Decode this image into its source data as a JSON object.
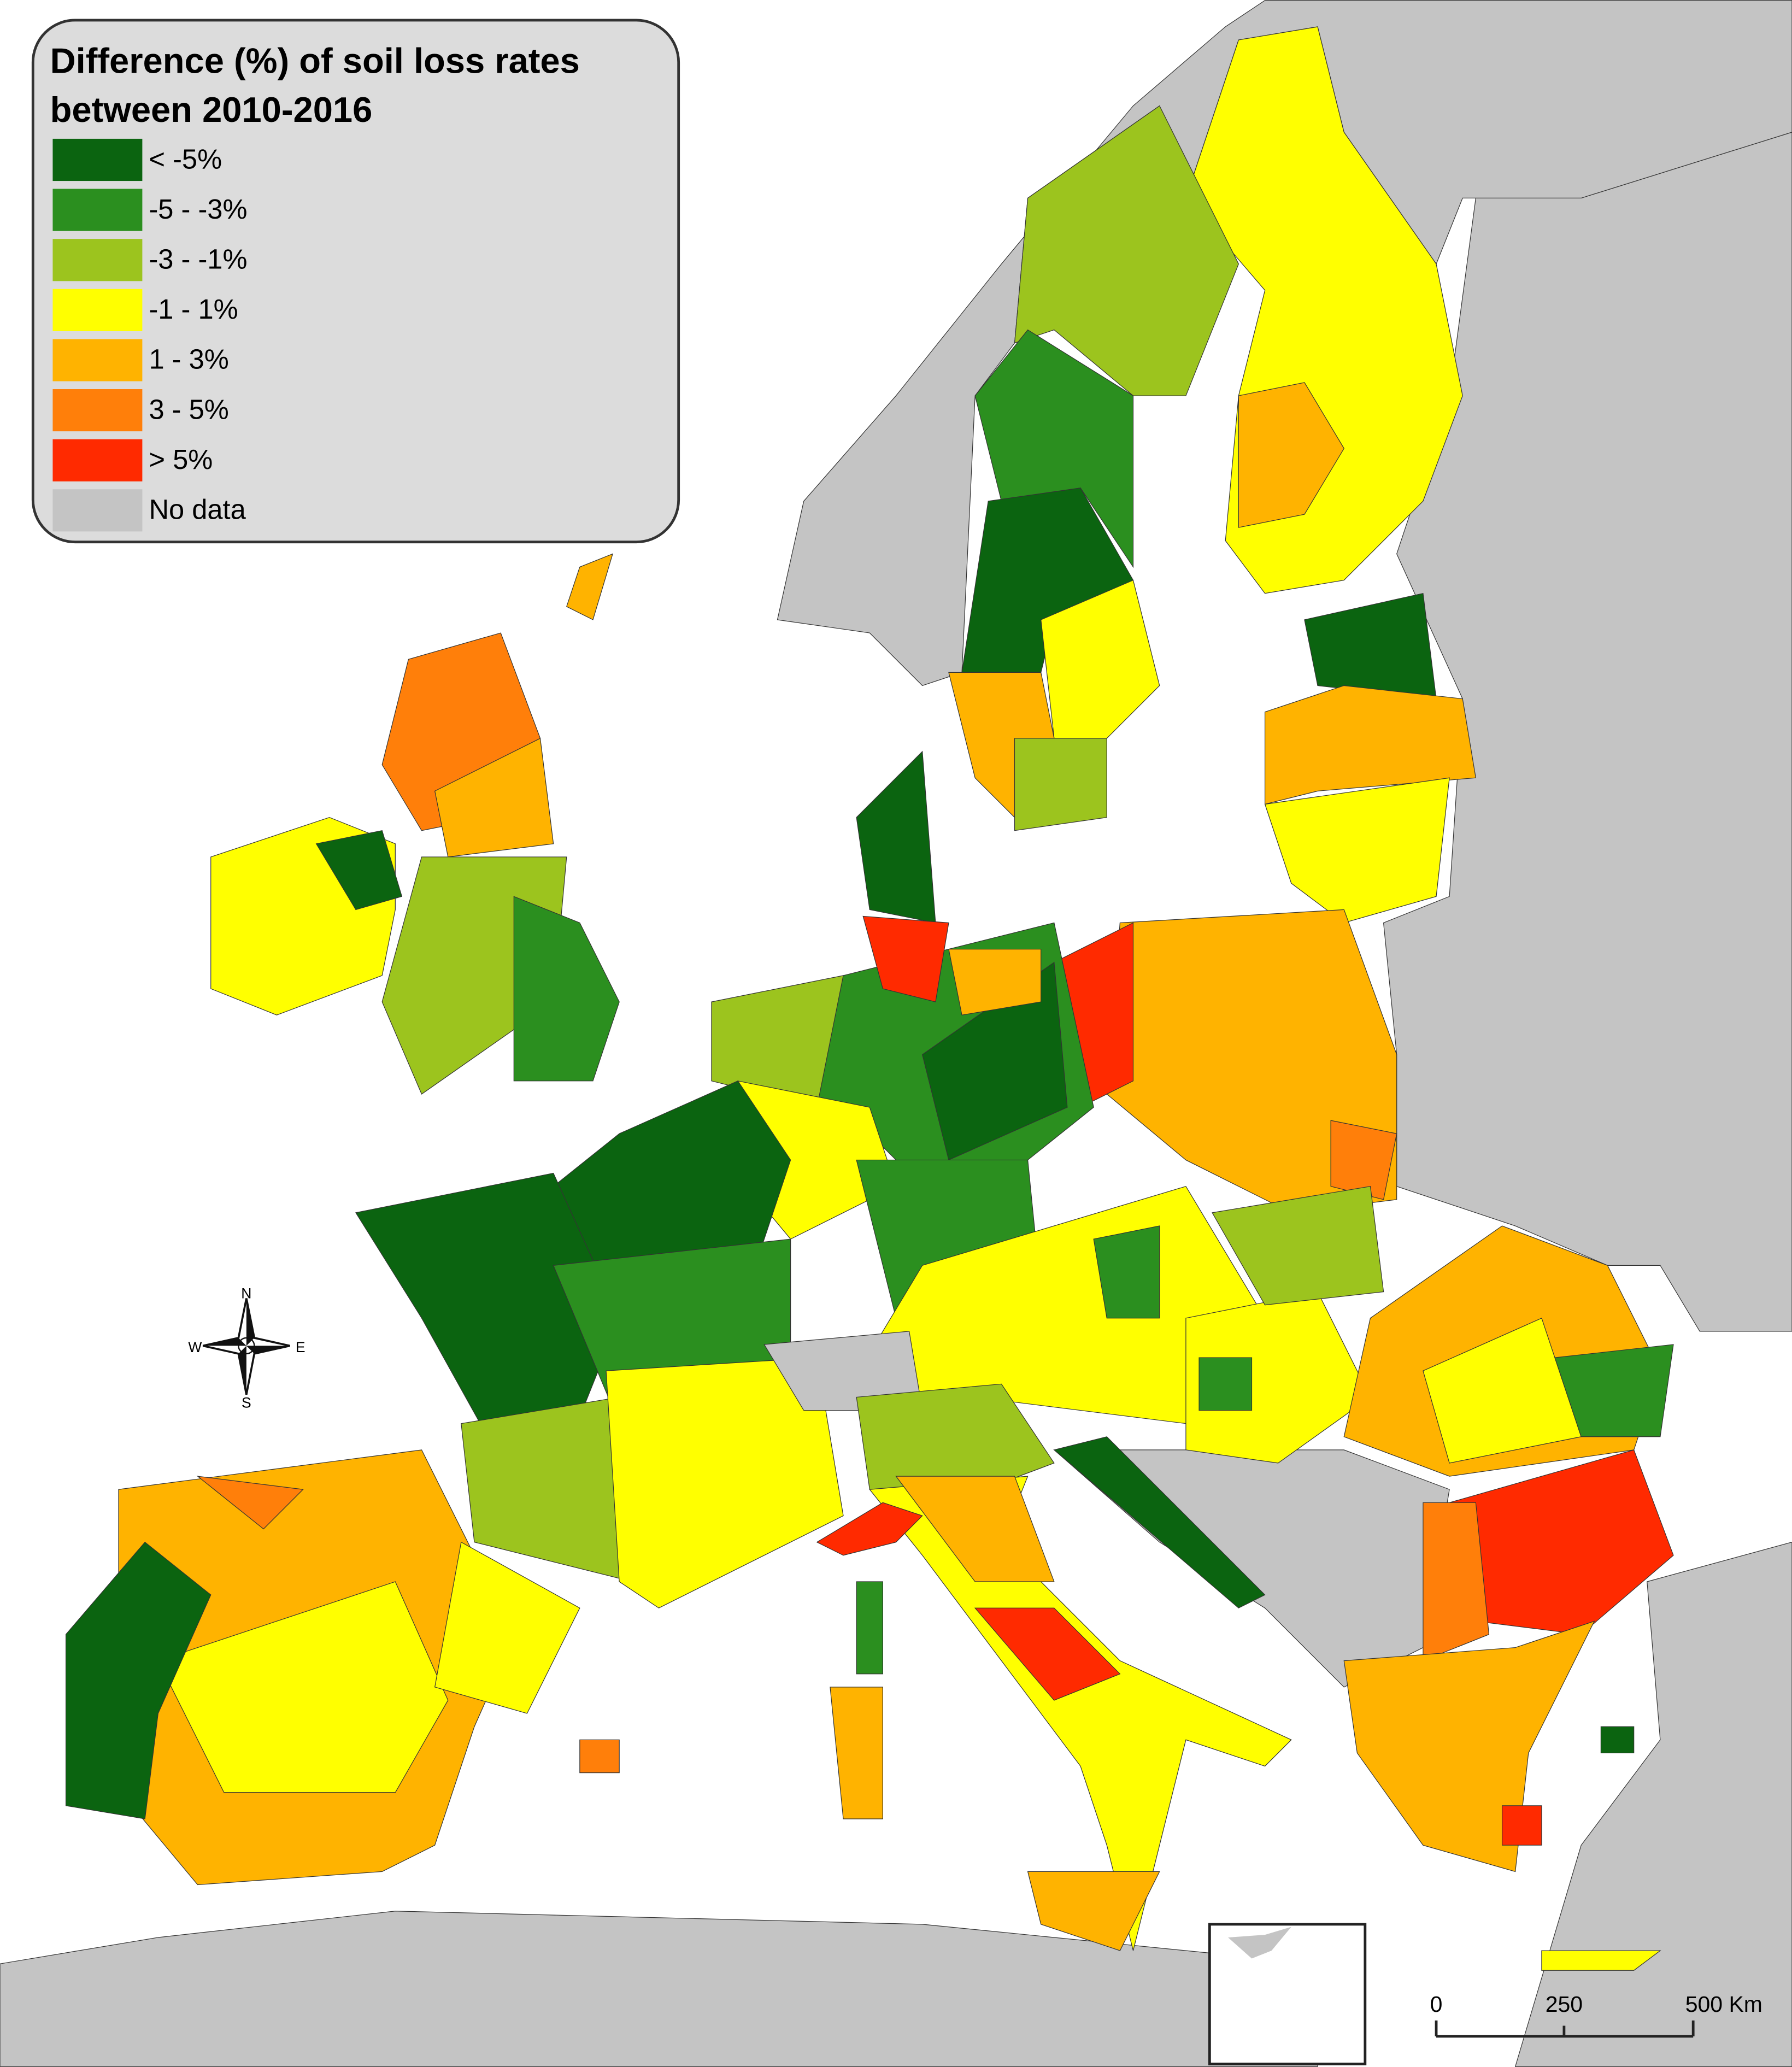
{
  "legend": {
    "title": [
      "Difference (%) of soil loss rates",
      "between 2010-2016"
    ],
    "items": [
      {
        "label": "< -5%",
        "color": "#0b6410"
      },
      {
        "label": "-5 - -3%",
        "color": "#2b8f1f"
      },
      {
        "label": "-3 - -1%",
        "color": "#9cc41e"
      },
      {
        "label": "-1 - 1%",
        "color": "#ffff00"
      },
      {
        "label": "1 - 3%",
        "color": "#ffb300"
      },
      {
        "label": "3 - 5%",
        "color": "#ff7f0a"
      },
      {
        "label": "> 5%",
        "color": "#ff2a00"
      },
      {
        "label": "No data",
        "color": "#c4c4c4"
      }
    ]
  },
  "compass": {
    "north": "N",
    "east": "E",
    "south": "S",
    "west": "W"
  },
  "scale_bar": {
    "labels": [
      "0",
      "250",
      "500 Km"
    ]
  }
}
